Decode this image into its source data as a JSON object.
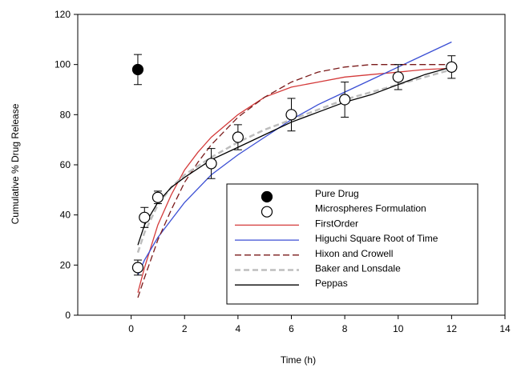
{
  "chart_data": {
    "type": "scatter",
    "xlabel": "Time  (h)",
    "ylabel": "Cumulative % Drug Release",
    "xlim": [
      -2,
      14
    ],
    "ylim": [
      0,
      120
    ],
    "xticks": [
      0,
      2,
      4,
      6,
      8,
      10,
      12,
      14
    ],
    "yticks": [
      0,
      20,
      40,
      60,
      80,
      100,
      120
    ],
    "grid": false,
    "legend_position": "bottom-right",
    "points": [
      {
        "name": "Pure Drug",
        "marker": "filled-circle",
        "color": "#000000",
        "data": [
          {
            "x": 0.25,
            "y": 98,
            "err": 6
          }
        ]
      },
      {
        "name": "Microspheres Formulation",
        "marker": "open-circle",
        "color": "#000000",
        "data": [
          {
            "x": 0.25,
            "y": 19,
            "err": 3
          },
          {
            "x": 0.5,
            "y": 39,
            "err": 4
          },
          {
            "x": 1,
            "y": 47,
            "err": 2.5
          },
          {
            "x": 3,
            "y": 60.5,
            "err": 6
          },
          {
            "x": 4,
            "y": 71,
            "err": 5
          },
          {
            "x": 6,
            "y": 80,
            "err": 6.5
          },
          {
            "x": 8,
            "y": 86,
            "err": 7
          },
          {
            "x": 10,
            "y": 95,
            "err": 5
          },
          {
            "x": 12,
            "y": 99,
            "err": 4.5
          }
        ]
      }
    ],
    "lines": [
      {
        "name": "FirstOrder",
        "color": "#d43a3a",
        "dash": "",
        "x": [
          0.25,
          0.5,
          1,
          1.5,
          2,
          2.5,
          3,
          4,
          5,
          6,
          7,
          8,
          9,
          10,
          11,
          12
        ],
        "y": [
          9,
          19,
          36,
          48,
          58,
          65,
          71,
          80,
          87,
          91,
          93,
          95,
          96,
          97,
          98,
          98.5
        ]
      },
      {
        "name": "Higuchi Square Root of Time",
        "color": "#3b4fd4",
        "dash": "",
        "x": [
          0.25,
          0.5,
          1,
          1.5,
          2,
          3,
          4,
          5,
          6,
          7,
          8,
          9,
          10,
          11,
          12
        ],
        "y": [
          16,
          22,
          31,
          38,
          45,
          56,
          64,
          71,
          78,
          84,
          89,
          94,
          99,
          104,
          109
        ]
      },
      {
        "name": "Hixon and Crowell",
        "color": "#7a1a1a",
        "dash": "8,4",
        "x": [
          0.25,
          0.5,
          1,
          1.5,
          2,
          2.5,
          3,
          4,
          5,
          6,
          7,
          8,
          9,
          10,
          11,
          12
        ],
        "y": [
          7,
          15,
          30,
          42,
          53,
          61,
          68,
          79,
          87,
          93,
          97,
          99,
          100,
          100,
          100,
          100
        ]
      },
      {
        "name": "Baker and Lonsdale",
        "color": "#bdbdbd",
        "dash": "7,4",
        "x": [
          0.25,
          0.5,
          1,
          1.5,
          2,
          3,
          4,
          5,
          6,
          7,
          8,
          9,
          10,
          11,
          12
        ],
        "y": [
          25,
          33,
          44,
          51,
          56,
          63,
          69,
          74,
          78,
          82,
          86,
          89,
          92,
          95,
          98
        ]
      },
      {
        "name": "Peppas",
        "color": "#000000",
        "dash": "",
        "x": [
          0.25,
          0.5,
          1,
          1.5,
          2,
          3,
          4,
          5,
          6,
          7,
          8,
          9,
          10,
          11,
          12
        ],
        "y": [
          28,
          36,
          45,
          51,
          55,
          62,
          67,
          72,
          77,
          81,
          85,
          88,
          92,
          96,
          99
        ]
      }
    ]
  }
}
